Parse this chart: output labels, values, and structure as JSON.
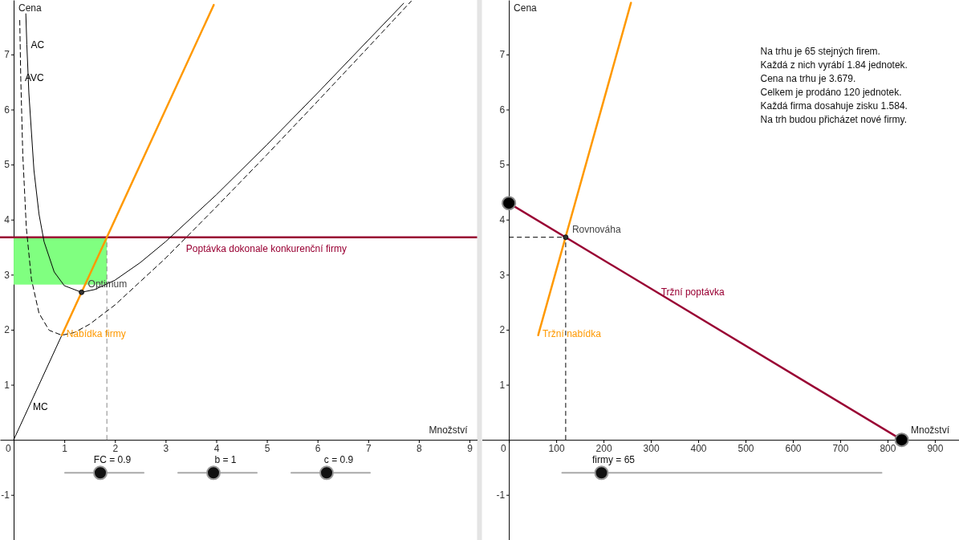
{
  "chart_data": [
    {
      "type": "line",
      "xlabel": "Množství",
      "ylabel": "Cena",
      "xlim": [
        -0.27,
        9.15
      ],
      "ylim": [
        -1.82,
        7.99
      ],
      "xticks": [
        0,
        1,
        2,
        3,
        4,
        5,
        6,
        7,
        8,
        9
      ],
      "yticks": [
        -1,
        1,
        2,
        3,
        4,
        5,
        6,
        7
      ],
      "series": [
        {
          "name": "AC",
          "color": "#000000",
          "x": [
            0.24,
            0.26,
            0.3,
            0.4,
            0.5,
            0.6,
            0.8,
            1.0,
            1.34,
            1.6,
            2,
            2.5,
            3,
            4,
            5,
            6,
            7,
            7.7
          ],
          "values": [
            7.74,
            7.18,
            6.3,
            4.9,
            4.1,
            3.6,
            3.05,
            2.8,
            2.68,
            2.73,
            2.9,
            3.22,
            3.6,
            4.45,
            5.36,
            6.3,
            7.26,
            7.93
          ]
        },
        {
          "name": "AVC",
          "color": "#000000",
          "line_style": "dashed",
          "x": [
            0.12,
            0.14,
            0.18,
            0.25,
            0.35,
            0.5,
            0.7,
            0.95,
            1.2,
            1.5,
            2,
            3,
            4,
            5,
            6,
            7,
            7.85
          ],
          "values": [
            7.62,
            6.57,
            5.18,
            3.85,
            2.92,
            2.3,
            1.99,
            1.9,
            1.95,
            2.1,
            2.45,
            3.3,
            4.23,
            5.18,
            6.15,
            7.13,
            7.97
          ]
        },
        {
          "name": "MC",
          "color": "#000000",
          "x": [
            0,
            0.3,
            0.95
          ],
          "values": [
            0,
            0.6,
            1.9
          ]
        },
        {
          "name": "Nabídka firmy",
          "color": "#ff9900",
          "x": [
            0.95,
            0.96,
            3.95
          ],
          "values": [
            1.9,
            1.92,
            7.9
          ]
        },
        {
          "name": "Optimum",
          "type": "scatter",
          "color": "#333333",
          "x": [
            1.34
          ],
          "values": [
            2.68
          ]
        }
      ],
      "ref_lines": [
        {
          "axis": "y",
          "value": 3.68,
          "label": "Poptávka dokonale konkurenční firmy",
          "color": "#990033"
        },
        {
          "axis": "x",
          "value": 1.84,
          "color": "#888888",
          "line_style": "dashed"
        }
      ],
      "bands": [
        {
          "axis": "y",
          "from": 2.82,
          "to": 3.68,
          "color": "#80ff80"
        }
      ],
      "annotations": [
        "FC = 0.9",
        "b = 1",
        "c = 0.9"
      ]
    },
    {
      "type": "line",
      "xlabel": "Množství",
      "ylabel": "Cena",
      "xlim": [
        -57,
        951
      ],
      "ylim": [
        -1.82,
        7.99
      ],
      "xticks": [
        0,
        100,
        200,
        300,
        400,
        500,
        600,
        700,
        800,
        900
      ],
      "yticks": [
        -1,
        1,
        2,
        3,
        4,
        5,
        6,
        7
      ],
      "series": [
        {
          "name": "Tržní nabídka",
          "color": "#ff9900",
          "x": [
            62,
            62.5,
            258
          ],
          "values": [
            1.9,
            1.92,
            7.94
          ]
        },
        {
          "name": "Tržní poptávka",
          "color": "#990033",
          "x": [
            0,
            313,
            830
          ],
          "values": [
            4.3,
            2.68,
            0
          ]
        },
        {
          "type": "scatter",
          "color": "#000000",
          "x": [
            0,
            830
          ],
          "values": [
            4.3,
            0
          ]
        },
        {
          "name": "Rovnováha",
          "type": "scatter",
          "color": "#333333",
          "x": [
            120
          ],
          "values": [
            3.68
          ]
        }
      ],
      "ref_lines": [
        {
          "axis": "x",
          "value": 120,
          "color": "#000000",
          "line_style": "dashed"
        },
        {
          "axis": "y",
          "value": 3.68,
          "color": "#000000",
          "line_style": "dashed"
        }
      ],
      "annotations": [
        "firmy = 65"
      ]
    },
    {
      "type": "other",
      "annotations": [
        "Na trhu je 65 stejných firem.",
        "Každá z nich vyrábí 1.84 jednotek.",
        "Cena na trhu je 3.679.",
        "Celkem je prodáno 120 jednotek.",
        "Každá firma dosahuje zisku 1.584.",
        "Na trh budou přicházet nové firmy."
      ]
    }
  ]
}
